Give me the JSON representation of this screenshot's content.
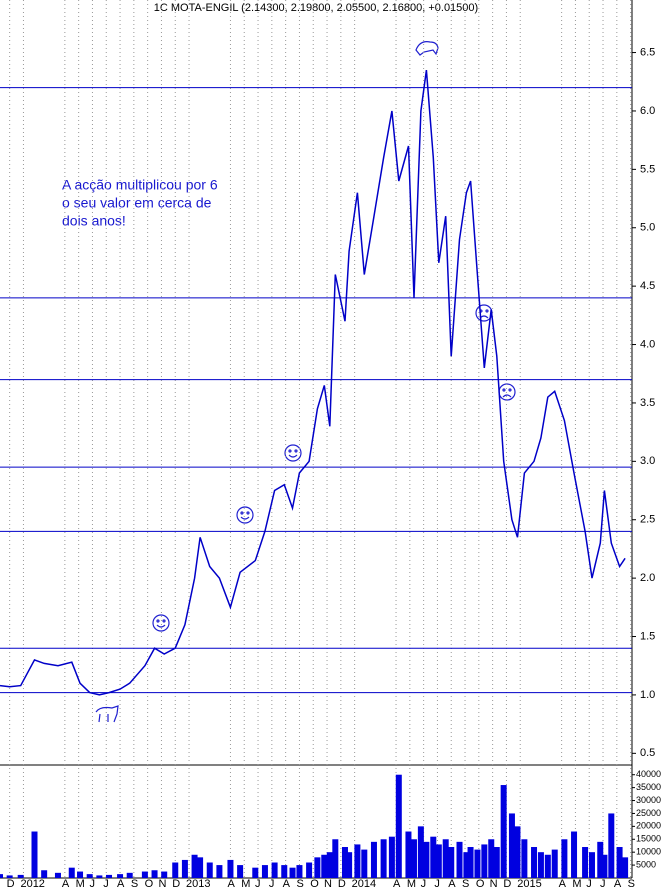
{
  "chart_data": {
    "type": "line",
    "title": "1C MOTA-ENGIL (2.14300, 2.19800, 2.05500, 2.16800, +0.01500)",
    "annotations": [
      "A acção multiplicou por 6",
      "o seu valor em cerca de",
      "dois anos!"
    ],
    "x": [
      -0.7,
      0,
      0.8,
      1.8,
      2.5,
      3.5,
      4.5,
      5.1,
      5.8,
      6.5,
      7.2,
      8,
      8.7,
      9.8,
      10.5,
      11.2,
      12,
      12.7,
      13.4,
      13.8,
      14.5,
      15.2,
      16,
      16.7,
      17.8,
      18.5,
      19.2,
      19.9,
      20.5,
      21,
      21.7,
      22.3,
      22.8,
      23.2,
      23.6,
      24.3,
      24.6,
      25.2,
      25.7,
      26.4,
      27.1,
      27.7,
      28.2,
      28.9,
      29.3,
      29.8,
      30.2,
      30.7,
      31.1,
      31.6,
      32,
      32.6,
      33.1,
      33.4,
      33.9,
      34.4,
      34.9,
      35.3,
      35.8,
      36.4,
      36.8,
      37.3,
      38,
      38.5,
      39,
      39.5,
      40.2,
      40.9,
      41.7,
      42.2,
      42.8,
      43.1,
      43.6,
      44.2,
      44.6
    ],
    "series": [
      {
        "color": "#0000c8",
        "values": [
          1.08,
          1.07,
          1.08,
          1.3,
          1.27,
          1.25,
          1.28,
          1.1,
          1.02,
          1.0,
          1.02,
          1.05,
          1.1,
          1.25,
          1.4,
          1.35,
          1.4,
          1.6,
          2.0,
          2.35,
          2.1,
          2.0,
          1.75,
          2.05,
          2.15,
          2.4,
          2.75,
          2.8,
          2.6,
          2.9,
          3.0,
          3.45,
          3.65,
          3.3,
          4.6,
          4.2,
          4.8,
          5.3,
          4.6,
          5.1,
          5.6,
          6.0,
          5.4,
          5.7,
          4.4,
          6.0,
          6.35,
          5.6,
          4.7,
          5.1,
          3.9,
          4.9,
          5.3,
          5.4,
          4.6,
          3.8,
          4.3,
          3.9,
          3.0,
          2.5,
          2.35,
          2.9,
          3.0,
          3.2,
          3.55,
          3.6,
          3.35,
          2.9,
          2.4,
          2.0,
          2.3,
          2.75,
          2.3,
          2.1,
          2.17
        ]
      },
      {
        "color": "#0000e0",
        "axis": "y2",
        "type": "bar",
        "values": [
          1500,
          1000,
          1200,
          18000,
          3000,
          2000,
          4000,
          2500,
          1500,
          1000,
          1200,
          1500,
          2000,
          2500,
          3000,
          2500,
          6000,
          7000,
          9000,
          8000,
          6000,
          5000,
          7000,
          5000,
          4000,
          5000,
          6000,
          5000,
          4000,
          5000,
          6000,
          8000,
          9000,
          10000,
          15000,
          12000,
          10000,
          13000,
          11000,
          14000,
          15000,
          16000,
          40000,
          18000,
          15000,
          20000,
          14000,
          16000,
          13000,
          15000,
          12000,
          14000,
          10000,
          12000,
          11000,
          13000,
          15000,
          12000,
          36000,
          25000,
          20000,
          15000,
          12000,
          10000,
          9000,
          11000,
          15000,
          18000,
          12000,
          10000,
          14000,
          9000,
          25000,
          12000,
          8000
        ]
      }
    ],
    "levels": [
      6.2,
      4.4,
      3.7,
      2.95,
      2.4,
      1.4,
      1.02
    ],
    "level_color": "#0000c8",
    "xlim": [
      -0.7,
      45.1
    ],
    "xticks": [
      {
        "value": 0,
        "label": "D"
      },
      {
        "value": 1,
        "label": "2012"
      },
      {
        "value": 4,
        "label": "A"
      },
      {
        "value": 5,
        "label": "M"
      },
      {
        "value": 6,
        "label": "J"
      },
      {
        "value": 7,
        "label": "J"
      },
      {
        "value": 8,
        "label": "A"
      },
      {
        "value": 9,
        "label": "S"
      },
      {
        "value": 10,
        "label": "O"
      },
      {
        "value": 11,
        "label": "N"
      },
      {
        "value": 12,
        "label": "D"
      },
      {
        "value": 13,
        "label": "2013"
      },
      {
        "value": 16,
        "label": "A"
      },
      {
        "value": 17,
        "label": "M"
      },
      {
        "value": 18,
        "label": "J"
      },
      {
        "value": 19,
        "label": "J"
      },
      {
        "value": 20,
        "label": "A"
      },
      {
        "value": 21,
        "label": "S"
      },
      {
        "value": 22,
        "label": "O"
      },
      {
        "value": 23,
        "label": "N"
      },
      {
        "value": 24,
        "label": "D"
      },
      {
        "value": 25,
        "label": "2014"
      },
      {
        "value": 28,
        "label": "A"
      },
      {
        "value": 29,
        "label": "M"
      },
      {
        "value": 30,
        "label": "J"
      },
      {
        "value": 31,
        "label": "J"
      },
      {
        "value": 32,
        "label": "A"
      },
      {
        "value": 33,
        "label": "S"
      },
      {
        "value": 34,
        "label": "O"
      },
      {
        "value": 35,
        "label": "N"
      },
      {
        "value": 36,
        "label": "D"
      },
      {
        "value": 37,
        "label": "2015"
      },
      {
        "value": 40,
        "label": "A"
      },
      {
        "value": 41,
        "label": "M"
      },
      {
        "value": 42,
        "label": "J"
      },
      {
        "value": 43,
        "label": "J"
      },
      {
        "value": 44,
        "label": "A"
      },
      {
        "value": 45,
        "label": "S"
      }
    ],
    "ylim": [
      0.4,
      6.95
    ],
    "yticks": [
      0.5,
      {
        "value": 1,
        "label": "1.0"
      },
      1.5,
      {
        "value": 2,
        "label": "2.0"
      },
      2.5,
      {
        "value": 3,
        "label": "3.0"
      },
      3.5,
      {
        "value": 4,
        "label": "4.0"
      },
      4.5,
      {
        "value": 5,
        "label": "5.0"
      },
      5.5,
      {
        "value": 6,
        "label": "6.0"
      },
      6.5
    ],
    "y2lim": [
      0,
      42600
    ],
    "y2ticks": [
      5000,
      10000,
      15000,
      20000,
      25000,
      30000,
      35000,
      40000
    ],
    "grid": true
  }
}
